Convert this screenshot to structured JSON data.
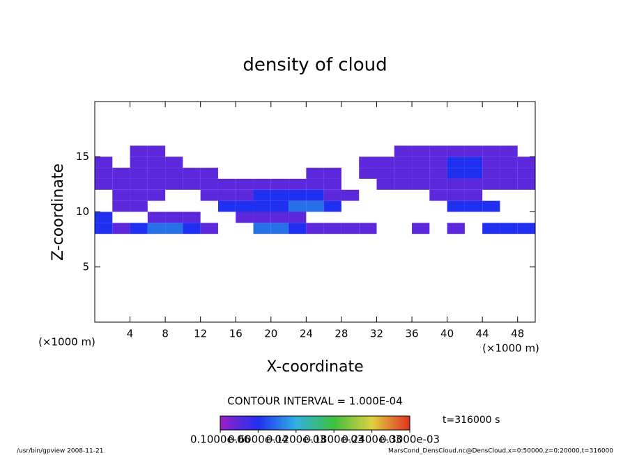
{
  "chart_data": {
    "type": "heatmap",
    "title": "density of cloud",
    "xlabel": "X-coordinate",
    "ylabel": "Z-coordinate",
    "xunit": "(×1000 m)",
    "yunit": "(×1000 m)",
    "xlim": [
      0,
      50
    ],
    "xticks": [
      4,
      8,
      12,
      16,
      20,
      24,
      28,
      32,
      36,
      40,
      44,
      48
    ],
    "ylim": [
      0,
      20
    ],
    "yticks": [
      5,
      10,
      15
    ],
    "x": [
      1,
      3,
      5,
      7,
      9,
      11,
      13,
      15,
      17,
      19,
      21,
      23,
      25,
      27,
      29,
      31,
      33,
      35,
      37,
      39,
      41,
      43,
      45,
      47,
      49
    ],
    "z": [
      8.5,
      9.5,
      10.5,
      11.5,
      12.5,
      13.5,
      14.5,
      15.5
    ],
    "values": [
      [
        6e-05,
        3e-05,
        6e-05,
        9e-05,
        9e-05,
        6e-05,
        3e-05,
        null,
        null,
        9e-05,
        9e-05,
        6e-05,
        3e-05,
        3e-05,
        3e-05,
        3e-05,
        null,
        null,
        3e-05,
        null,
        3e-05,
        null,
        6e-05,
        6e-05,
        6e-05
      ],
      [
        6e-05,
        null,
        null,
        3e-05,
        3e-05,
        3e-05,
        null,
        null,
        3e-05,
        3e-05,
        3e-05,
        3e-05,
        null,
        null,
        null,
        null,
        null,
        null,
        null,
        null,
        null,
        null,
        null,
        null,
        null
      ],
      [
        null,
        3e-05,
        3e-05,
        null,
        null,
        null,
        null,
        6e-05,
        6e-05,
        6e-05,
        6e-05,
        9e-05,
        9e-05,
        6e-05,
        null,
        null,
        null,
        null,
        null,
        null,
        6e-05,
        6e-05,
        6e-05,
        null,
        null
      ],
      [
        null,
        3e-05,
        3e-05,
        3e-05,
        null,
        null,
        3e-05,
        3e-05,
        3e-05,
        6e-05,
        6e-05,
        6e-05,
        6e-05,
        3e-05,
        3e-05,
        null,
        null,
        null,
        null,
        3e-05,
        3e-05,
        3e-05,
        null,
        null,
        null
      ],
      [
        3e-05,
        3e-05,
        3e-05,
        3e-05,
        3e-05,
        3e-05,
        3e-05,
        3e-05,
        3e-05,
        3e-05,
        3e-05,
        3e-05,
        3e-05,
        3e-05,
        null,
        null,
        3e-05,
        3e-05,
        3e-05,
        3e-05,
        3e-05,
        3e-05,
        3e-05,
        3e-05,
        3e-05
      ],
      [
        3e-05,
        3e-05,
        3e-05,
        3e-05,
        3e-05,
        3e-05,
        3e-05,
        null,
        null,
        null,
        null,
        null,
        3e-05,
        3e-05,
        null,
        3e-05,
        3e-05,
        3e-05,
        3e-05,
        3e-05,
        6e-05,
        6e-05,
        3e-05,
        3e-05,
        3e-05
      ],
      [
        3e-05,
        null,
        3e-05,
        3e-05,
        3e-05,
        null,
        null,
        null,
        null,
        null,
        null,
        null,
        null,
        null,
        null,
        3e-05,
        3e-05,
        3e-05,
        3e-05,
        3e-05,
        6e-05,
        6e-05,
        3e-05,
        3e-05,
        3e-05
      ],
      [
        null,
        null,
        3e-05,
        3e-05,
        null,
        null,
        null,
        null,
        null,
        null,
        null,
        null,
        null,
        null,
        null,
        null,
        null,
        3e-05,
        3e-05,
        3e-05,
        3e-05,
        3e-05,
        3e-05,
        3e-05,
        null
      ]
    ],
    "colormap": [
      "#9a20c8",
      "#2030f0",
      "#30b0e0",
      "#40c040",
      "#e0d040",
      "#e03020"
    ],
    "clim": [
      0,
      0.0003
    ],
    "colorbar_ticks": [
      {
        "value": 1e-07,
        "label": "0.1000e-06"
      },
      {
        "value": 6e-05,
        "label": "0.6000e-04"
      },
      {
        "value": 0.00012,
        "label": "0.1200e-03"
      },
      {
        "value": 0.00018,
        "label": "0.1800e-03"
      },
      {
        "value": 0.00024,
        "label": "0.2400e-03"
      },
      {
        "value": 0.0003,
        "label": "0.3000e-03"
      }
    ],
    "contour_interval": "CONTOUR INTERVAL = 1.000E-04",
    "time": "t=316000 s",
    "footer_left": "/usr/bin/gpview   2008-11-21",
    "footer_right": "MarsCond_DensCloud.nc@DensCloud,x=0:50000,z=0:20000,t=316000"
  }
}
